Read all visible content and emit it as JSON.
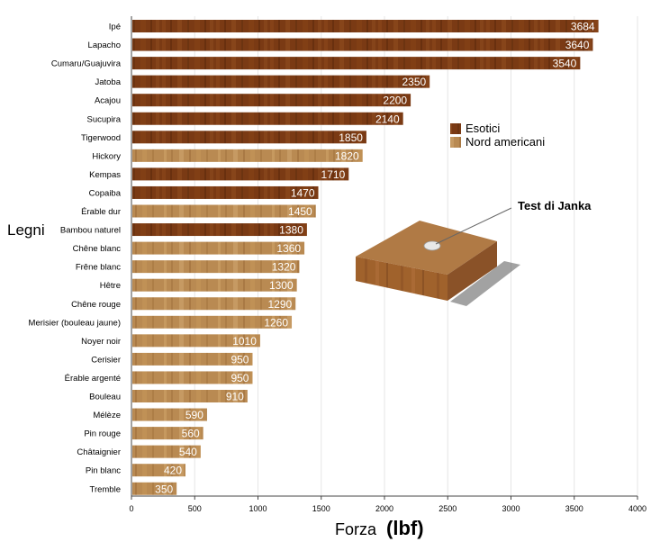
{
  "chart_data": {
    "type": "bar",
    "orientation": "horizontal",
    "categories": [
      "Ipé",
      "Lapacho",
      "Cumaru/Guajuvira",
      "Jatoba",
      "Acajou",
      "Sucupira",
      "Tigerwood",
      "Hickory",
      "Kempas",
      "Copaiba",
      "Érable dur",
      "Bambou naturel",
      "Chêne blanc",
      "Frêne blanc",
      "Hêtre",
      "Chêne rouge",
      "Merisier (bouleau jaune)",
      "Noyer noir",
      "Cerisier",
      "Érable argenté",
      "Bouleau",
      "Mélèze",
      "Pin rouge",
      "Châtaignier",
      "Pin blanc",
      "Tremble"
    ],
    "values": [
      3684,
      3640,
      3540,
      2350,
      2200,
      2140,
      1850,
      1820,
      1710,
      1470,
      1450,
      1380,
      1360,
      1320,
      1300,
      1290,
      1260,
      1010,
      950,
      950,
      910,
      590,
      560,
      540,
      420,
      350
    ],
    "groups": [
      "Esotici",
      "Esotici",
      "Esotici",
      "Esotici",
      "Esotici",
      "Esotici",
      "Esotici",
      "Nord americani",
      "Esotici",
      "Esotici",
      "Nord americani",
      "Esotici",
      "Nord americani",
      "Nord americani",
      "Nord americani",
      "Nord americani",
      "Nord americani",
      "Nord americani",
      "Nord americani",
      "Nord americani",
      "Nord americani",
      "Nord americani",
      "Nord americani",
      "Nord americani",
      "Nord americani",
      "Nord americani"
    ],
    "series": [
      {
        "name": "Esotici",
        "color": "#7a3a14"
      },
      {
        "name": "Nord americani",
        "color": "#b98a52"
      }
    ],
    "xlabel_main": "Forza",
    "xlabel_unit": "(lbf)",
    "ylabel": "Legni",
    "xlim": [
      0,
      4000
    ],
    "xticks": [
      0,
      500,
      1000,
      1500,
      2000,
      2500,
      3000,
      3500,
      4000
    ],
    "grid": "vertical",
    "legend": "right",
    "annotation": "Test di Janka"
  }
}
